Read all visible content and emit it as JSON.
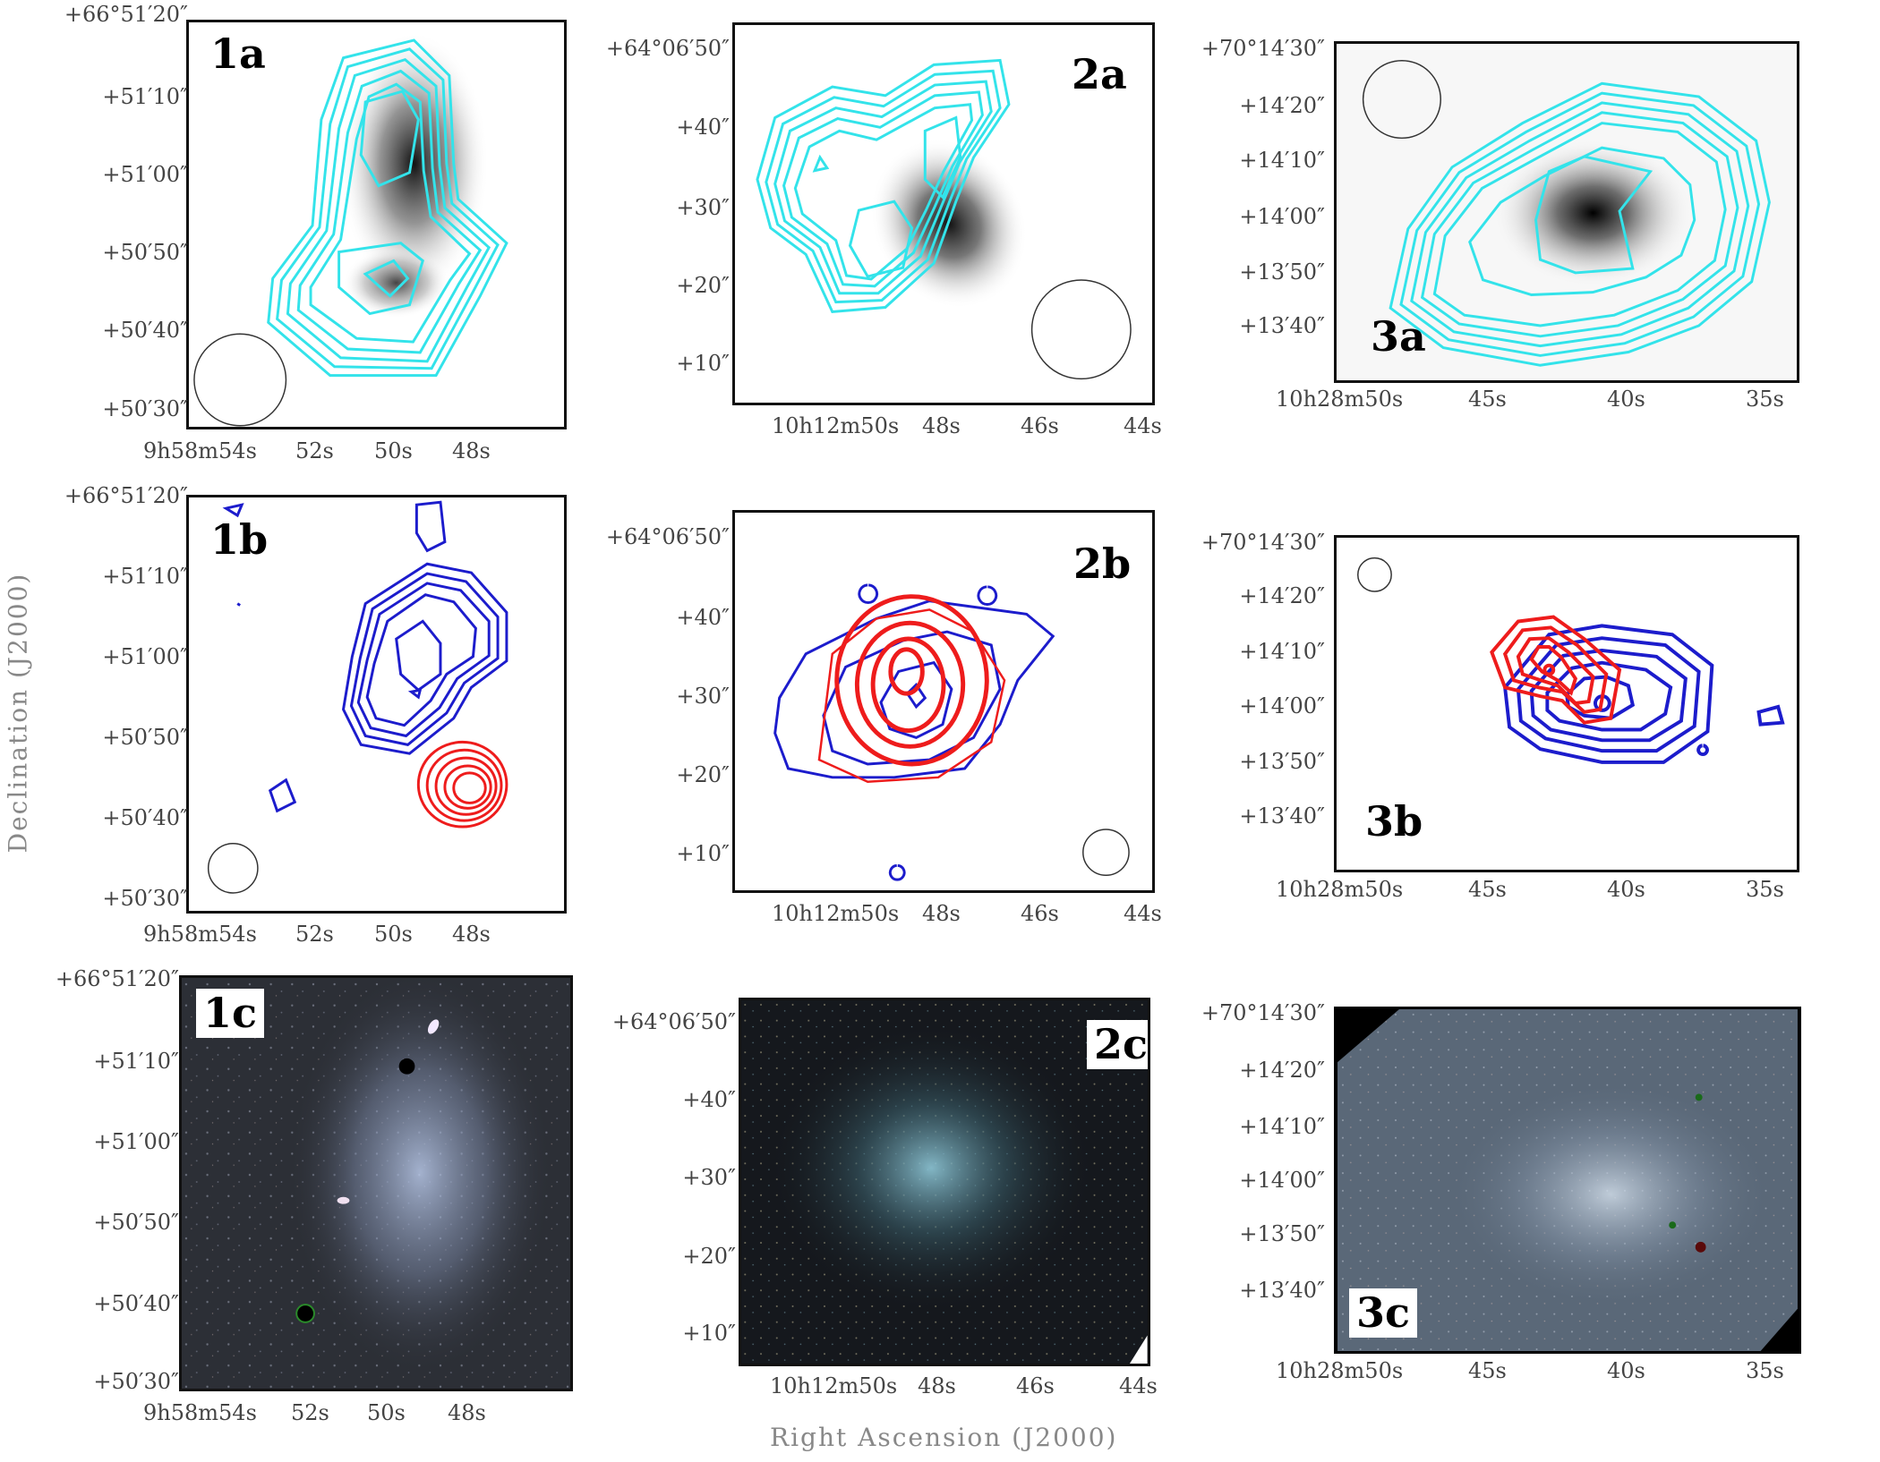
{
  "axes": {
    "x_title": "Right Ascension (J2000)",
    "y_title": "Declination (J2000)"
  },
  "columns": [
    {
      "id": 1,
      "dec_ticks": [
        "+66°51′20″",
        "+51′10″",
        "+51′00″",
        "+50′50″",
        "+50′40″",
        "+50′30″"
      ],
      "ra_ticks": [
        "9h58m54s",
        "52s",
        "50s",
        "48s"
      ],
      "ra_ticks_c": [
        "9h58m54s",
        "52s",
        "50s",
        "48s"
      ]
    },
    {
      "id": 2,
      "dec_ticks": [
        "+64°06′50″",
        "+40″",
        "+30″",
        "+20″",
        "+10″"
      ],
      "ra_ticks": [
        "10h12m50s",
        "48s",
        "46s",
        "44s"
      ],
      "ra_ticks_c": [
        "10h12m50s",
        "48s",
        "46s",
        "44s"
      ]
    },
    {
      "id": 3,
      "dec_ticks": [
        "+70°14′30″",
        "+14′20″",
        "+14′10″",
        "+14′00″",
        "+13′50″",
        "+13′40″"
      ],
      "ra_ticks": [
        "10h28m50s",
        "45s",
        "40s",
        "35s"
      ],
      "ra_ticks_c": [
        "10h28m50s",
        "45s",
        "40s",
        "35s"
      ]
    }
  ],
  "panel_labels": {
    "p1a": "1a",
    "p2a": "2a",
    "p3a": "3a",
    "p1b": "1b",
    "p2b": "2b",
    "p3b": "3b",
    "p1c": "1c",
    "p2c": "2c",
    "p3c": "3c"
  },
  "colors": {
    "contour_a": "#33e3ea",
    "contour_b_blue": "#1c1ccc",
    "contour_b_red": "#ee1c1c",
    "image_bg_c": "#20242c"
  }
}
